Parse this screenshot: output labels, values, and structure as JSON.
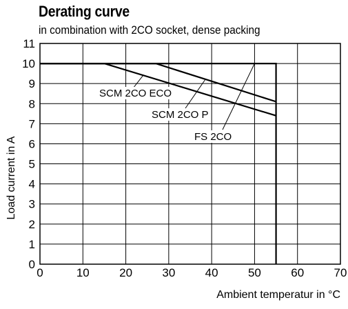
{
  "chart_data": {
    "type": "line",
    "title": "Derating curve",
    "subtitle": "in combination with 2CO socket, dense packing",
    "xlabel": "Ambient temperatur in °C",
    "ylabel": "Load  current in A",
    "xlim": [
      0,
      70
    ],
    "ylim": [
      0,
      11
    ],
    "xticks": [
      0,
      10,
      20,
      30,
      40,
      50,
      60,
      70
    ],
    "yticks": [
      0,
      1,
      2,
      3,
      4,
      5,
      6,
      7,
      8,
      9,
      10,
      11
    ],
    "grid": true,
    "series": [
      {
        "name": "SCM 2CO ECO",
        "x": [
          0,
          15,
          55
        ],
        "y": [
          10,
          10,
          7.4
        ]
      },
      {
        "name": "SCM 2CO P",
        "x": [
          0,
          27,
          55
        ],
        "y": [
          10,
          10,
          8.1
        ]
      },
      {
        "name": "FS 2CO",
        "x": [
          0,
          55,
          55
        ],
        "y": [
          10,
          10,
          0
        ]
      }
    ],
    "annotations": [
      {
        "text": "SCM 2CO ECO",
        "target": [
          24,
          9.4
        ]
      },
      {
        "text": "SCM 2CO P",
        "target": [
          38.5,
          9.2
        ]
      },
      {
        "text": "FS 2CO",
        "target": [
          50,
          10
        ]
      }
    ]
  }
}
